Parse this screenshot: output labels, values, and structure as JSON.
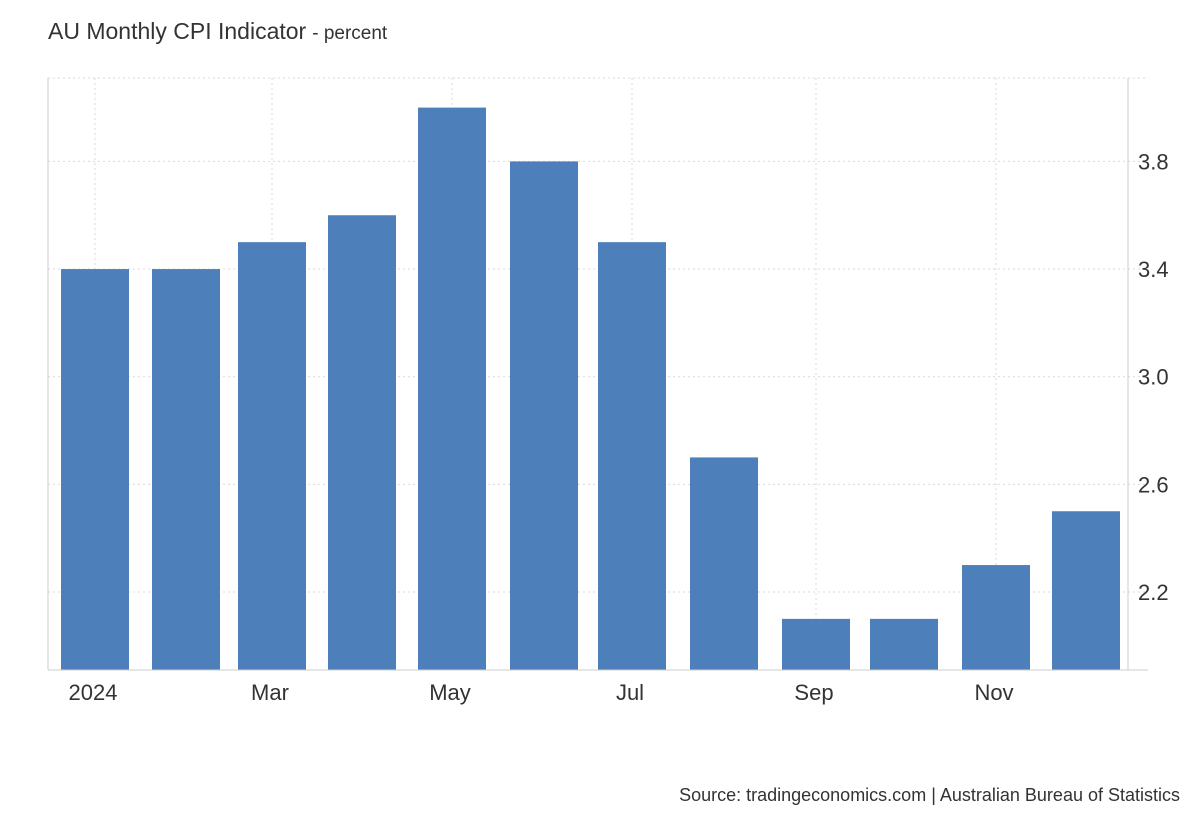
{
  "header": {
    "title": "AU Monthly CPI Indicator",
    "subtitle": "- percent"
  },
  "footer": {
    "source": "Source: tradingeconomics.com | Australian Bureau of Statistics"
  },
  "colors": {
    "bar": "#4d7fbb",
    "grid": "#d9d9d9",
    "axis": "#cccccc",
    "text": "#333333"
  },
  "chart_data": {
    "type": "bar",
    "title": "AU Monthly CPI Indicator",
    "subtitle": "- percent",
    "categories": [
      "2024-01",
      "2024-02",
      "2024-03",
      "2024-04",
      "2024-05",
      "2024-06",
      "2024-07",
      "2024-08",
      "2024-09",
      "2024-10",
      "2024-11",
      "2024-12"
    ],
    "values": [
      3.4,
      3.4,
      3.5,
      3.6,
      4.0,
      3.8,
      3.5,
      2.7,
      2.1,
      2.1,
      2.3,
      2.5
    ],
    "x_tick_labels": [
      {
        "category": "2024-01",
        "label": "2024"
      },
      {
        "category": "2024-03",
        "label": "Mar"
      },
      {
        "category": "2024-05",
        "label": "May"
      },
      {
        "category": "2024-07",
        "label": "Jul"
      },
      {
        "category": "2024-09",
        "label": "Sep"
      },
      {
        "category": "2024-11",
        "label": "Nov"
      }
    ],
    "y_ticks": [
      2.2,
      2.6,
      3.0,
      3.4,
      3.8
    ],
    "ylim": [
      1.91,
      4.11
    ],
    "y_axis_side": "right",
    "grid": true,
    "legend": "none",
    "xlabel": "",
    "ylabel": ""
  }
}
